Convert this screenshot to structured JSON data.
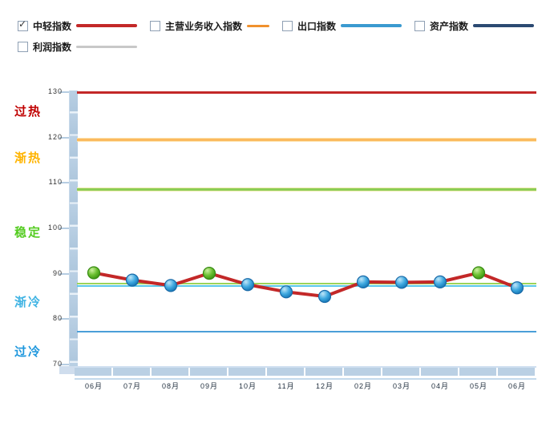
{
  "legend": {
    "rows": [
      [
        {
          "label": "中轻指数",
          "checked": true,
          "color": "#c32828",
          "thickness": 4
        },
        {
          "label": "主营业务收入指数",
          "checked": false,
          "color": "#f0912d",
          "thickness": 3
        },
        {
          "label": "出口指数",
          "checked": false,
          "color": "#3a9ad0",
          "thickness": 4
        },
        {
          "label": "资产指数",
          "checked": false,
          "color": "#2b4a72",
          "thickness": 4
        }
      ],
      [
        {
          "label": "利润指数",
          "checked": false,
          "color": "#c8c8c8",
          "thickness": 3
        }
      ]
    ],
    "check_glyph": "✓"
  },
  "chart_data": {
    "type": "line",
    "title": "",
    "xlabel": "",
    "ylabel": "",
    "x": [
      "06月",
      "07月",
      "08月",
      "09月",
      "10月",
      "11月",
      "12月",
      "02月",
      "03月",
      "04月",
      "05月",
      "06月"
    ],
    "series": [
      {
        "name": "中轻指数",
        "color": "#c32828",
        "values": [
          90.2,
          88.6,
          87.4,
          90.1,
          87.6,
          86.0,
          85.0,
          88.2,
          88.1,
          88.2,
          90.2,
          86.9
        ],
        "marker_colors": [
          "green",
          "blue",
          "blue",
          "green",
          "blue",
          "blue",
          "blue",
          "blue",
          "blue",
          "blue",
          "green",
          "blue"
        ]
      }
    ],
    "ylim": [
      70,
      130
    ],
    "yticks": [
      130,
      120,
      110,
      100,
      90,
      80,
      70
    ],
    "grid": false,
    "legend_position": "top",
    "threshold_lines": [
      {
        "value": 130,
        "color": "#c32828",
        "thickness": 3,
        "glow": ""
      },
      {
        "value": 119.5,
        "color": "#fbba5e",
        "thickness": 3,
        "glow": "#fde3b0"
      },
      {
        "value": 108.6,
        "color": "#8ccd55",
        "thickness": 3,
        "glow": "#efeab2"
      },
      {
        "value": 87.9,
        "color": "#9bd45a",
        "thickness": 2,
        "glow": ""
      },
      {
        "value": 87.3,
        "color": "#5ac8ea",
        "thickness": 2,
        "glow": ""
      },
      {
        "value": 77.3,
        "color": "#4a9fd8",
        "thickness": 2,
        "glow": ""
      }
    ],
    "zones": [
      {
        "label": "过热",
        "color": "#c00000",
        "value": 125.6
      },
      {
        "label": "渐热",
        "color": "#ffb400",
        "value": 115.3
      },
      {
        "label": "稳定",
        "color": "#55cc22",
        "value": 99.0
      },
      {
        "label": "渐冷",
        "color": "#3fb3e3",
        "value": 83.6
      },
      {
        "label": "过冷",
        "color": "#1e97dd",
        "value": 72.6
      }
    ],
    "marker_styles": {
      "blue": {
        "fill_light": "#bfe6f8",
        "fill_mid": "#3fa9e0",
        "fill_dark": "#1577b5",
        "stroke": "#1a6aa8"
      },
      "green": {
        "fill_light": "#cdf0a0",
        "fill_mid": "#6abf30",
        "fill_dark": "#3c9412",
        "stroke": "#358a10"
      }
    }
  }
}
